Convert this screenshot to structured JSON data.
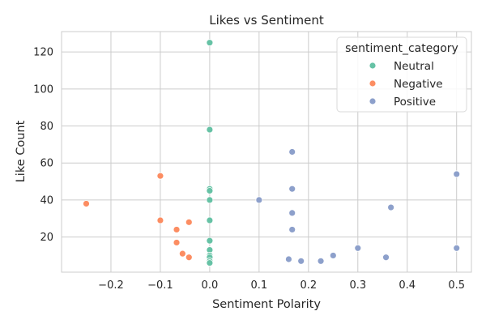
{
  "chart_data": {
    "type": "scatter",
    "title": "Likes vs Sentiment",
    "xlabel": "Sentiment Polarity",
    "ylabel": "Like Count",
    "xlim": [
      -0.3,
      0.53
    ],
    "ylim": [
      1,
      131
    ],
    "xticks": [
      -0.2,
      -0.1,
      0.0,
      0.1,
      0.2,
      0.3,
      0.4,
      0.5
    ],
    "xtick_labels": [
      "−0.2",
      "−0.1",
      "0.0",
      "0.1",
      "0.2",
      "0.3",
      "0.4",
      "0.5"
    ],
    "yticks": [
      20,
      40,
      60,
      80,
      100,
      120
    ],
    "ytick_labels": [
      "20",
      "40",
      "60",
      "80",
      "100",
      "120"
    ],
    "grid": true,
    "legend": {
      "title": "sentiment_category",
      "position": "top-right"
    },
    "series": [
      {
        "name": "Neutral",
        "color": "#66c2a5",
        "points": [
          [
            0.0,
            125
          ],
          [
            0.0,
            78
          ],
          [
            0.0,
            46
          ],
          [
            0.0,
            45
          ],
          [
            0.0,
            40
          ],
          [
            0.0,
            29
          ],
          [
            0.0,
            18
          ],
          [
            0.0,
            13
          ],
          [
            0.0,
            10
          ],
          [
            0.0,
            9
          ],
          [
            0.0,
            7
          ],
          [
            0.0,
            6
          ]
        ]
      },
      {
        "name": "Negative",
        "color": "#fc8d62",
        "points": [
          [
            -0.25,
            38
          ],
          [
            -0.1,
            53
          ],
          [
            -0.1,
            29
          ],
          [
            -0.067,
            24
          ],
          [
            -0.042,
            28
          ],
          [
            -0.067,
            17
          ],
          [
            -0.055,
            11
          ],
          [
            -0.042,
            9
          ]
        ]
      },
      {
        "name": "Positive",
        "color": "#8da0cb",
        "points": [
          [
            0.167,
            66
          ],
          [
            0.5,
            54
          ],
          [
            0.167,
            46
          ],
          [
            0.1,
            40
          ],
          [
            0.167,
            33
          ],
          [
            0.367,
            36
          ],
          [
            0.167,
            24
          ],
          [
            0.3,
            14
          ],
          [
            0.5,
            14
          ],
          [
            0.25,
            10
          ],
          [
            0.357,
            9
          ],
          [
            0.16,
            8
          ],
          [
            0.185,
            7
          ],
          [
            0.225,
            7
          ]
        ]
      }
    ]
  }
}
